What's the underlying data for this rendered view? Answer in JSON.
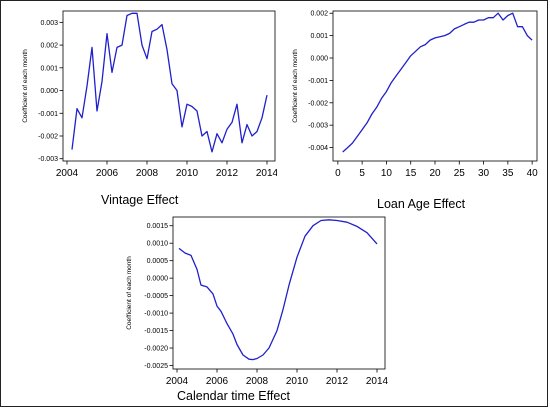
{
  "chart_data": [
    {
      "type": "line",
      "caption": "Vintage Effect",
      "ylabel": "Coefficient of each month",
      "xlim": [
        2003.8,
        2014.4
      ],
      "ylim": [
        -0.0031,
        0.0035
      ],
      "xticks": [
        2004,
        2006,
        2008,
        2010,
        2012,
        2014
      ],
      "xtick_labels": [
        "2004",
        "2006",
        "2008",
        "2010",
        "2012",
        "2014"
      ],
      "yticks": [
        -0.003,
        -0.002,
        -0.001,
        0.0,
        0.001,
        0.002,
        0.003
      ],
      "ytick_labels": [
        "-0.003",
        "-0.002",
        "-0.001",
        "0.000",
        "0.001",
        "0.002",
        "0.003"
      ],
      "grid": false,
      "color": "#2020cc",
      "series": [
        {
          "x": [
            2004.25,
            2004.5,
            2004.75,
            2005.0,
            2005.25,
            2005.5,
            2005.75,
            2006.0,
            2006.25,
            2006.5,
            2006.75,
            2007.0,
            2007.25,
            2007.5,
            2007.75,
            2008.0,
            2008.25,
            2008.5,
            2008.75,
            2009.0,
            2009.25,
            2009.5,
            2009.75,
            2010.0,
            2010.25,
            2010.5,
            2010.75,
            2011.0,
            2011.25,
            2011.5,
            2011.75,
            2012.0,
            2012.25,
            2012.5,
            2012.75,
            2013.0,
            2013.25,
            2013.5,
            2013.75,
            2014.0
          ],
          "y": [
            -0.0026,
            -0.0008,
            -0.0012,
            0.0002,
            0.0019,
            -0.0009,
            0.0004,
            0.0025,
            0.0008,
            0.0019,
            0.002,
            0.0033,
            0.0034,
            0.0034,
            0.002,
            0.0014,
            0.0026,
            0.0027,
            0.0029,
            0.0018,
            0.0003,
            0.0,
            -0.0016,
            -0.0006,
            -0.0007,
            -0.0009,
            -0.002,
            -0.0018,
            -0.0027,
            -0.0019,
            -0.0023,
            -0.0017,
            -0.0014,
            -0.0006,
            -0.0023,
            -0.0015,
            -0.002,
            -0.0018,
            -0.0012,
            -0.0002
          ]
        }
      ]
    },
    {
      "type": "line",
      "caption": "Loan Age Effect",
      "ylabel": "Coefficient of each month",
      "xlim": [
        -1,
        41
      ],
      "ylim": [
        -0.0046,
        0.0021
      ],
      "xticks": [
        0,
        5,
        10,
        15,
        20,
        25,
        30,
        35,
        40
      ],
      "xtick_labels": [
        "0",
        "5",
        "10",
        "15",
        "20",
        "25",
        "30",
        "35",
        "40"
      ],
      "yticks": [
        -0.004,
        -0.003,
        -0.002,
        -0.001,
        0.0,
        0.001,
        0.002
      ],
      "ytick_labels": [
        "-0.004",
        "-0.003",
        "-0.002",
        "-0.001",
        "0.000",
        "0.001",
        "0.002"
      ],
      "grid": false,
      "color": "#2020cc",
      "series": [
        {
          "x": [
            1,
            2,
            3,
            4,
            5,
            6,
            7,
            8,
            9,
            10,
            11,
            12,
            13,
            14,
            15,
            16,
            17,
            18,
            19,
            20,
            21,
            22,
            23,
            24,
            25,
            26,
            27,
            28,
            29,
            30,
            31,
            32,
            33,
            34,
            35,
            36,
            37,
            38,
            39,
            40
          ],
          "y": [
            -0.0042,
            -0.004,
            -0.0038,
            -0.0035,
            -0.0032,
            -0.0029,
            -0.0025,
            -0.0022,
            -0.0018,
            -0.0015,
            -0.0011,
            -0.0008,
            -0.0005,
            -0.0002,
            0.0001,
            0.0003,
            0.0005,
            0.0006,
            0.0008,
            0.0009,
            0.00095,
            0.001,
            0.0011,
            0.0013,
            0.0014,
            0.0015,
            0.0016,
            0.0016,
            0.0017,
            0.0017,
            0.0018,
            0.0018,
            0.002,
            0.0017,
            0.0019,
            0.002,
            0.0014,
            0.0014,
            0.001,
            0.0008
          ]
        }
      ]
    },
    {
      "type": "line",
      "caption": "Calendar time Effect",
      "ylabel": "Coefficient of each month",
      "xlim": [
        2003.8,
        2014.4
      ],
      "ylim": [
        -0.0026,
        0.00175
      ],
      "xticks": [
        2004,
        2006,
        2008,
        2010,
        2012,
        2014
      ],
      "xtick_labels": [
        "2004",
        "2006",
        "2008",
        "2010",
        "2012",
        "2014"
      ],
      "yticks": [
        -0.0025,
        -0.002,
        -0.0015,
        -0.001,
        -0.0005,
        0.0,
        0.0005,
        0.001,
        0.0015
      ],
      "ytick_labels": [
        "-0.0025",
        "-0.0020",
        "-0.0015",
        "-0.0010",
        "-0.0005",
        "0.0000",
        "0.0005",
        "0.0010",
        "0.0015"
      ],
      "grid": false,
      "color": "#2020cc",
      "series": [
        {
          "x": [
            2004.1,
            2004.4,
            2004.7,
            2005.0,
            2005.2,
            2005.5,
            2005.8,
            2006.0,
            2006.2,
            2006.5,
            2006.8,
            2007.0,
            2007.3,
            2007.6,
            2007.8,
            2008.0,
            2008.3,
            2008.6,
            2009.0,
            2009.3,
            2009.6,
            2010.0,
            2010.4,
            2010.8,
            2011.2,
            2011.6,
            2012.0,
            2012.5,
            2013.0,
            2013.5,
            2014.0
          ],
          "y": [
            0.00085,
            0.00072,
            0.00065,
            0.00025,
            -0.0002,
            -0.00025,
            -0.00045,
            -0.0008,
            -0.00095,
            -0.0013,
            -0.0016,
            -0.0019,
            -0.0022,
            -0.00232,
            -0.00233,
            -0.0023,
            -0.0022,
            -0.002,
            -0.0015,
            -0.0009,
            -0.0002,
            0.0006,
            0.0012,
            0.0015,
            0.00165,
            0.00167,
            0.00165,
            0.0016,
            0.00148,
            0.0013,
            0.00098
          ]
        }
      ]
    }
  ]
}
